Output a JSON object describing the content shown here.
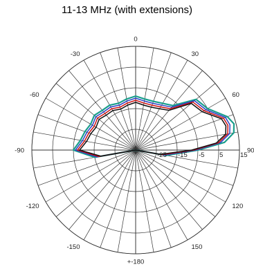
{
  "chart_data": {
    "type": "polar-line",
    "title": "11-13 MHz (with extensions)",
    "angle_tick_labels": [
      "0",
      "30",
      "60",
      "90",
      "120",
      "150",
      "+-180",
      "-150",
      "-120",
      "-90",
      "-60",
      "-30"
    ],
    "angle_tick_values": [
      0,
      30,
      60,
      90,
      120,
      150,
      180,
      -150,
      -120,
      -90,
      -60,
      -30
    ],
    "radial_tick_labels": [
      "-25",
      "-15",
      "-5",
      "5",
      "15"
    ],
    "radial_tick_values": [
      -25,
      -15,
      -5,
      5,
      15
    ],
    "rlim": [
      -35,
      15
    ],
    "angle_step_deg": 10,
    "grid": true,
    "series": [
      {
        "color": "#1a9e8c",
        "points": [
          [
            -90,
            -5
          ],
          [
            -80,
            -8
          ],
          [
            -70,
            -9
          ],
          [
            -60,
            -10
          ],
          [
            -50,
            -9
          ],
          [
            -40,
            -10
          ],
          [
            -30,
            -10
          ],
          [
            -20,
            -11
          ],
          [
            -10,
            -10
          ],
          [
            0,
            -9
          ],
          [
            10,
            -10
          ],
          [
            20,
            -10
          ],
          [
            30,
            -9
          ],
          [
            40,
            -7
          ],
          [
            50,
            3
          ],
          [
            60,
            5
          ],
          [
            70,
            12
          ],
          [
            75,
            14
          ],
          [
            80,
            13
          ],
          [
            85,
            8
          ],
          [
            90,
            -5
          ],
          [
            100,
            -20
          ],
          [
            180,
            -35
          ],
          [
            -100,
            -15
          ],
          [
            -90,
            -5
          ]
        ]
      },
      {
        "color": "#2a3fc4",
        "points": [
          [
            -90,
            -6
          ],
          [
            -80,
            -9
          ],
          [
            -70,
            -10
          ],
          [
            -60,
            -11
          ],
          [
            -50,
            -10
          ],
          [
            -40,
            -11
          ],
          [
            -30,
            -11
          ],
          [
            -20,
            -12
          ],
          [
            -10,
            -11
          ],
          [
            0,
            -10
          ],
          [
            10,
            -11
          ],
          [
            20,
            -11
          ],
          [
            30,
            -10
          ],
          [
            40,
            -8
          ],
          [
            50,
            2
          ],
          [
            60,
            4
          ],
          [
            70,
            11
          ],
          [
            75,
            12
          ],
          [
            80,
            11
          ],
          [
            85,
            6
          ],
          [
            90,
            -6
          ],
          [
            100,
            -21
          ],
          [
            180,
            -35
          ],
          [
            -100,
            -16
          ],
          [
            -90,
            -6
          ]
        ]
      },
      {
        "color": "#cc1111",
        "points": [
          [
            -90,
            -7
          ],
          [
            -80,
            -10
          ],
          [
            -70,
            -11
          ],
          [
            -60,
            -12
          ],
          [
            -50,
            -11
          ],
          [
            -40,
            -12
          ],
          [
            -30,
            -12
          ],
          [
            -20,
            -13
          ],
          [
            -10,
            -12
          ],
          [
            0,
            -11
          ],
          [
            10,
            -12
          ],
          [
            20,
            -12
          ],
          [
            30,
            -11
          ],
          [
            40,
            -9
          ],
          [
            50,
            1
          ],
          [
            60,
            3
          ],
          [
            70,
            10
          ],
          [
            75,
            11
          ],
          [
            80,
            10
          ],
          [
            85,
            5
          ],
          [
            90,
            -7
          ],
          [
            100,
            -22
          ],
          [
            180,
            -35
          ],
          [
            -100,
            -17
          ],
          [
            -90,
            -7
          ]
        ]
      },
      {
        "color": "#111111",
        "points": [
          [
            -90,
            -8
          ],
          [
            -80,
            -11
          ],
          [
            -70,
            -12
          ],
          [
            -60,
            -13
          ],
          [
            -50,
            -12
          ],
          [
            -40,
            -13
          ],
          [
            -30,
            -13
          ],
          [
            -20,
            -14
          ],
          [
            -10,
            -13
          ],
          [
            0,
            -12
          ],
          [
            10,
            -13
          ],
          [
            20,
            -13
          ],
          [
            30,
            -12
          ],
          [
            40,
            -10
          ],
          [
            50,
            0
          ],
          [
            60,
            2
          ],
          [
            70,
            9
          ],
          [
            75,
            10
          ],
          [
            80,
            9
          ],
          [
            85,
            4
          ],
          [
            90,
            -8
          ],
          [
            100,
            -23
          ],
          [
            180,
            -35
          ],
          [
            -100,
            -18
          ],
          [
            -90,
            -8
          ]
        ]
      }
    ]
  }
}
